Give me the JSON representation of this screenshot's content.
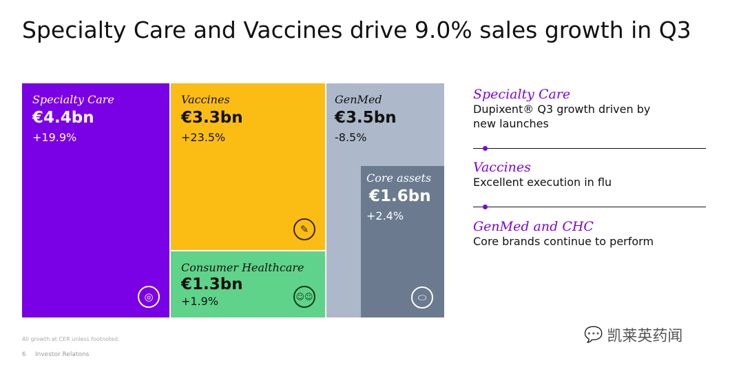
{
  "title": "Specialty Care and Vaccines drive 9.0% sales growth in Q3",
  "tiles": [
    {
      "name": "Specialty Care",
      "value": "€4.4bn",
      "growth": "+19.9%",
      "icon": "target-icon",
      "color": "#7a00e6"
    },
    {
      "name": "Vaccines",
      "value": "€3.3bn",
      "growth": "+23.5%",
      "icon": "syringe-icon",
      "color": "#fbbd14"
    },
    {
      "name": "Consumer Healthcare",
      "value": "€1.3bn",
      "growth": "+1.9%",
      "icon": "people-icon",
      "color": "#5fd38a"
    },
    {
      "name": "GenMed",
      "value": "€3.5bn",
      "growth": "-8.5%",
      "color": "#adb9ca"
    },
    {
      "name": "Core assets",
      "value": "€1.6bn",
      "growth": "+2.4%",
      "icon": "pill-icon",
      "color": "#6b7a8f"
    }
  ],
  "highlights": [
    {
      "heading": "Specialty Care",
      "text": "Dupixent® Q3 growth driven by new launches"
    },
    {
      "heading": "Vaccines",
      "text": "Excellent execution in flu"
    },
    {
      "heading": "GenMed and CHC",
      "text": "Core brands continue to perform"
    }
  ],
  "footnote": "All growth at CER unless footnoted.",
  "page_number": "6",
  "footer_label": "Investor Relatons",
  "watermark": "凯莱英药闻"
}
